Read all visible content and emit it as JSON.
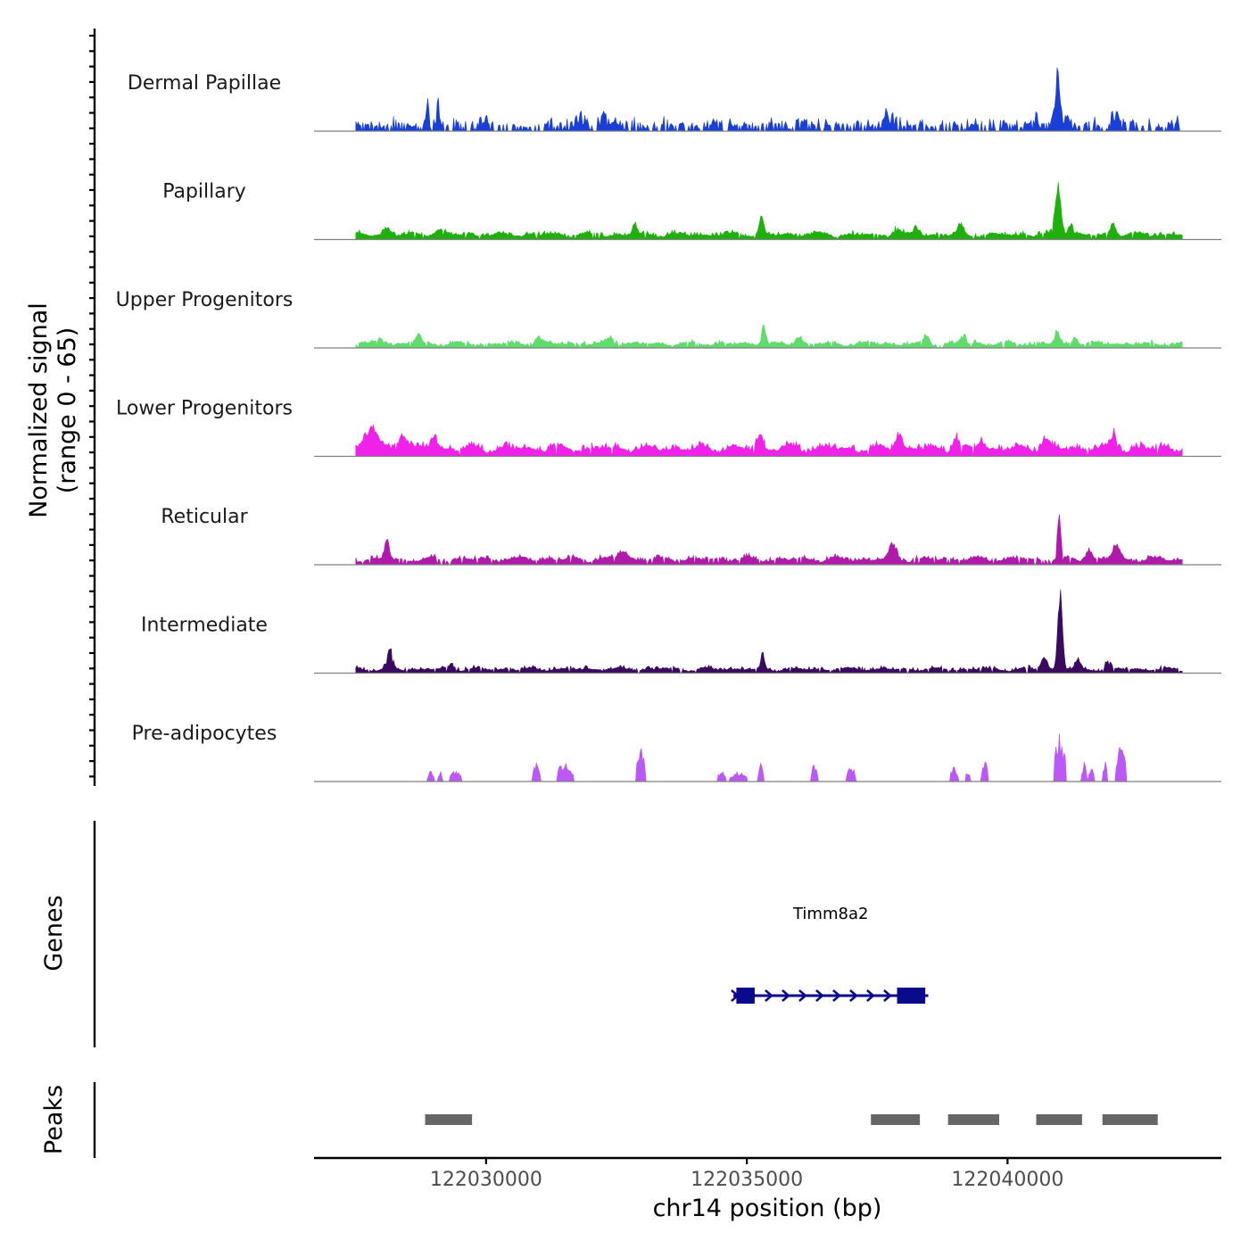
{
  "chart_data": {
    "type": "area",
    "figure": "genomic coverage plot",
    "signal_ylabel_line1": "Normalized signal",
    "signal_ylabel_line2": "(range 0 - 65)",
    "ylim": [
      0,
      65
    ],
    "genes_label": "Genes",
    "peaks_label": "Peaks",
    "xlabel": "chr14 position (bp)",
    "xlim": [
      122026700,
      122044100
    ],
    "x_ticks": [
      {
        "value": 122030000,
        "label": "122030000"
      },
      {
        "value": 122035000,
        "label": "122035000"
      },
      {
        "value": 122040000,
        "label": "122040000"
      }
    ],
    "signal_start": 122027500,
    "signal_end": 122043350,
    "tracks": [
      {
        "name": "Dermal Papillae",
        "color": "#1a3fd6",
        "baseline": 7,
        "noise": 12,
        "gap": 0.38,
        "peaks": [
          [
            122028870,
            30,
            45
          ],
          [
            122029080,
            33,
            40
          ],
          [
            122031800,
            12,
            150
          ],
          [
            122032250,
            18,
            60
          ],
          [
            122032500,
            10,
            120
          ],
          [
            122037700,
            13,
            140
          ],
          [
            122040560,
            13,
            60
          ],
          [
            122040960,
            62,
            75
          ],
          [
            122041150,
            20,
            60
          ],
          [
            122042060,
            15,
            90
          ]
        ]
      },
      {
        "name": "Papillary",
        "color": "#1fb00e",
        "baseline": 6,
        "noise": 6,
        "gap": 0.04,
        "peaks": [
          [
            122028100,
            8,
            100
          ],
          [
            122029100,
            6,
            150
          ],
          [
            122032850,
            14,
            60
          ],
          [
            122035280,
            22,
            60
          ],
          [
            122037860,
            10,
            90
          ],
          [
            122038260,
            10,
            80
          ],
          [
            122039100,
            11,
            80
          ],
          [
            122040970,
            62,
            80
          ],
          [
            122041200,
            18,
            60
          ],
          [
            122042030,
            16,
            70
          ]
        ]
      },
      {
        "name": "Upper Progenitors",
        "color": "#5fdc6c",
        "baseline": 5,
        "noise": 5,
        "gap": 0.05,
        "peaks": [
          [
            122028000,
            8,
            120
          ],
          [
            122028700,
            14,
            70
          ],
          [
            122031000,
            9,
            100
          ],
          [
            122032400,
            9,
            90
          ],
          [
            122035320,
            28,
            50
          ],
          [
            122036000,
            8,
            100
          ],
          [
            122038450,
            12,
            70
          ],
          [
            122039150,
            14,
            60
          ],
          [
            122040950,
            16,
            60
          ],
          [
            122041300,
            9,
            80
          ]
        ]
      },
      {
        "name": "Lower Progenitors",
        "color": "#f021e8",
        "baseline": 10,
        "noise": 9,
        "gap": 0.02,
        "peaks": [
          [
            122027800,
            28,
            160
          ],
          [
            122028400,
            20,
            120
          ],
          [
            122029000,
            18,
            90
          ],
          [
            122035250,
            18,
            70
          ],
          [
            122037900,
            20,
            90
          ],
          [
            122039000,
            15,
            80
          ],
          [
            122039500,
            12,
            90
          ],
          [
            122040720,
            15,
            80
          ],
          [
            122042050,
            16,
            90
          ]
        ]
      },
      {
        "name": "Reticular",
        "color": "#b01aab",
        "baseline": 7,
        "noise": 6,
        "gap": 0.08,
        "peaks": [
          [
            122028100,
            24,
            60
          ],
          [
            122032600,
            11,
            120
          ],
          [
            122037800,
            17,
            90
          ],
          [
            122040990,
            62,
            45
          ],
          [
            122041560,
            14,
            80
          ],
          [
            122042080,
            17,
            90
          ]
        ]
      },
      {
        "name": "Intermediate",
        "color": "#3a0a5e",
        "baseline": 5,
        "noise": 5,
        "gap": 0.07,
        "peaks": [
          [
            122028150,
            25,
            70
          ],
          [
            122029350,
            9,
            70
          ],
          [
            122035300,
            20,
            40
          ],
          [
            122040700,
            16,
            80
          ],
          [
            122041010,
            105,
            60
          ],
          [
            122041350,
            12,
            60
          ],
          [
            122041930,
            12,
            60
          ]
        ]
      },
      {
        "name": "Pre-adipocytes",
        "color": "#bb59f7",
        "baseline": 0,
        "noise": 0,
        "gap": 0,
        "sparse": true,
        "bursts": [
          [
            122028870,
            122029000,
            13
          ],
          [
            122029080,
            122029160,
            13
          ],
          [
            122029300,
            122029530,
            13
          ],
          [
            122030880,
            122031050,
            24
          ],
          [
            122031350,
            122031680,
            24
          ],
          [
            122032870,
            122033050,
            42
          ],
          [
            122034430,
            122034600,
            13
          ],
          [
            122034670,
            122035010,
            12
          ],
          [
            122035220,
            122035330,
            24
          ],
          [
            122036220,
            122036360,
            22
          ],
          [
            122036900,
            122037080,
            22
          ],
          [
            122038900,
            122039050,
            20
          ],
          [
            122039190,
            122039290,
            13
          ],
          [
            122039500,
            122039630,
            24
          ],
          [
            122040900,
            122041070,
            60
          ],
          [
            122041020,
            122041130,
            42
          ],
          [
            122041420,
            122041520,
            24
          ],
          [
            122041560,
            122041670,
            22
          ],
          [
            122041830,
            122041920,
            24
          ],
          [
            122042080,
            122042280,
            43
          ]
        ]
      }
    ],
    "genes": [
      {
        "name": "Timm8a2",
        "start": 122034740,
        "end": 122038480,
        "strand": "+",
        "exons": [
          [
            122034800,
            122035150
          ],
          [
            122037880,
            122038420
          ]
        ]
      }
    ],
    "peaks": [
      [
        122028830,
        122029730
      ],
      [
        122037380,
        122038320
      ],
      [
        122038860,
        122039840
      ],
      [
        122040550,
        122041430
      ],
      [
        122041820,
        122042880
      ]
    ]
  }
}
